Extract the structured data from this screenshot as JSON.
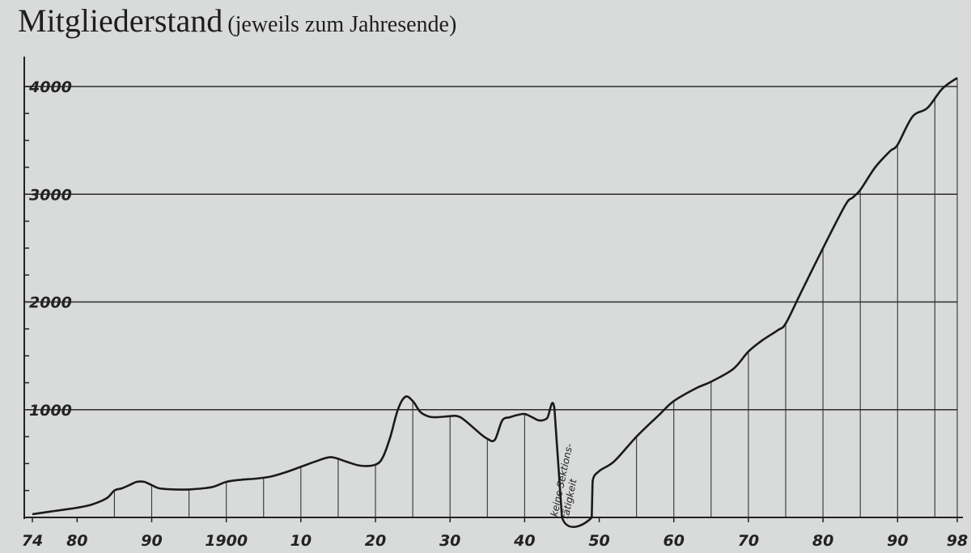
{
  "chart_data": {
    "type": "line",
    "title": "Mitgliederstand",
    "subtitle": "(jeweils zum Jahresende)",
    "xlabel": "",
    "ylabel": "",
    "xlim": [
      1874,
      1998
    ],
    "ylim": [
      0,
      4000
    ],
    "grid": "horizontal at y-ticks, vertical drop lines every 5 years",
    "y_ticks": [
      1000,
      2000,
      3000,
      4000
    ],
    "y_tick_labels": [
      "1000",
      "2000",
      "3000",
      "4000"
    ],
    "x_ticks": [
      1874,
      1880,
      1890,
      1900,
      1910,
      1920,
      1930,
      1940,
      1950,
      1960,
      1970,
      1980,
      1990,
      1998
    ],
    "x_tick_labels": [
      "74",
      "80",
      "90",
      "1900",
      "10",
      "20",
      "30",
      "40",
      "50",
      "60",
      "70",
      "80",
      "90",
      "98"
    ],
    "annotation": {
      "text": [
        "keine Sektions-",
        "tätigkeit"
      ],
      "x": 1946.5,
      "y": 700
    },
    "series": [
      {
        "x": [
          1874,
          1876,
          1878,
          1880,
          1882,
          1884,
          1885,
          1886,
          1887,
          1888,
          1889,
          1890,
          1891,
          1893,
          1895,
          1898,
          1900,
          1902,
          1904,
          1906,
          1908,
          1910,
          1912,
          1914,
          1916,
          1918,
          1920,
          1921,
          1922,
          1923,
          1924,
          1925,
          1926,
          1927,
          1928,
          1930,
          1931,
          1932,
          1934,
          1935,
          1936,
          1937,
          1938,
          1939,
          1940,
          1941,
          1942,
          1943,
          1944,
          1945,
          1949,
          1949.1,
          1950,
          1952,
          1955,
          1958,
          1960,
          1963,
          1965,
          1968,
          1970,
          1972,
          1974,
          1975,
          1977,
          1980,
          1983,
          1984,
          1985,
          1987,
          1989,
          1990,
          1992,
          1994,
          1996,
          1998
        ],
        "y": [
          30,
          50,
          70,
          90,
          120,
          180,
          250,
          270,
          300,
          330,
          330,
          300,
          270,
          260,
          260,
          280,
          330,
          350,
          360,
          380,
          420,
          470,
          520,
          560,
          520,
          480,
          490,
          560,
          750,
          1000,
          1120,
          1080,
          980,
          940,
          930,
          940,
          940,
          900,
          780,
          730,
          720,
          900,
          930,
          950,
          960,
          930,
          900,
          920,
          1010,
          0,
          0,
          330,
          430,
          520,
          750,
          950,
          1080,
          1200,
          1260,
          1380,
          1540,
          1650,
          1740,
          1800,
          2080,
          2500,
          2900,
          2970,
          3040,
          3250,
          3400,
          3460,
          3720,
          3800,
          3980,
          4080
        ]
      }
    ]
  }
}
